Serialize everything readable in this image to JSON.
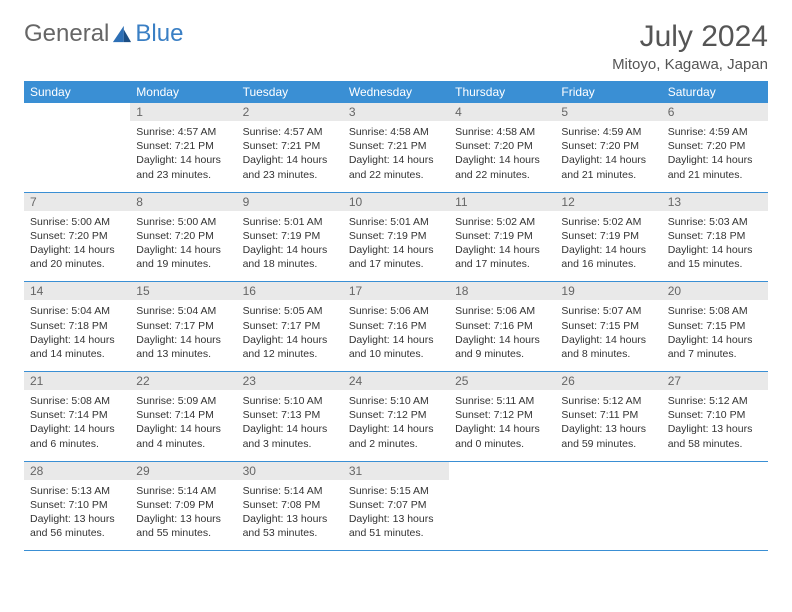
{
  "brand": {
    "part1": "General",
    "part2": "Blue"
  },
  "title": "July 2024",
  "location": "Mitoyo, Kagawa, Japan",
  "dayNames": [
    "Sunday",
    "Monday",
    "Tuesday",
    "Wednesday",
    "Thursday",
    "Friday",
    "Saturday"
  ],
  "colors": {
    "headerBlue": "#3a8fd4",
    "daynumBg": "#e9e9e9",
    "text": "#333333",
    "brandBlue": "#3a7fc4"
  },
  "typography": {
    "titleSize": 30,
    "locationSize": 15,
    "headerSize": 12,
    "cellSize": 10.5
  },
  "startOffset": 1,
  "days": [
    {
      "n": 1,
      "sunrise": "4:57 AM",
      "sunset": "7:21 PM",
      "daylight": "14 hours and 23 minutes."
    },
    {
      "n": 2,
      "sunrise": "4:57 AM",
      "sunset": "7:21 PM",
      "daylight": "14 hours and 23 minutes."
    },
    {
      "n": 3,
      "sunrise": "4:58 AM",
      "sunset": "7:21 PM",
      "daylight": "14 hours and 22 minutes."
    },
    {
      "n": 4,
      "sunrise": "4:58 AM",
      "sunset": "7:20 PM",
      "daylight": "14 hours and 22 minutes."
    },
    {
      "n": 5,
      "sunrise": "4:59 AM",
      "sunset": "7:20 PM",
      "daylight": "14 hours and 21 minutes."
    },
    {
      "n": 6,
      "sunrise": "4:59 AM",
      "sunset": "7:20 PM",
      "daylight": "14 hours and 21 minutes."
    },
    {
      "n": 7,
      "sunrise": "5:00 AM",
      "sunset": "7:20 PM",
      "daylight": "14 hours and 20 minutes."
    },
    {
      "n": 8,
      "sunrise": "5:00 AM",
      "sunset": "7:20 PM",
      "daylight": "14 hours and 19 minutes."
    },
    {
      "n": 9,
      "sunrise": "5:01 AM",
      "sunset": "7:19 PM",
      "daylight": "14 hours and 18 minutes."
    },
    {
      "n": 10,
      "sunrise": "5:01 AM",
      "sunset": "7:19 PM",
      "daylight": "14 hours and 17 minutes."
    },
    {
      "n": 11,
      "sunrise": "5:02 AM",
      "sunset": "7:19 PM",
      "daylight": "14 hours and 17 minutes."
    },
    {
      "n": 12,
      "sunrise": "5:02 AM",
      "sunset": "7:19 PM",
      "daylight": "14 hours and 16 minutes."
    },
    {
      "n": 13,
      "sunrise": "5:03 AM",
      "sunset": "7:18 PM",
      "daylight": "14 hours and 15 minutes."
    },
    {
      "n": 14,
      "sunrise": "5:04 AM",
      "sunset": "7:18 PM",
      "daylight": "14 hours and 14 minutes."
    },
    {
      "n": 15,
      "sunrise": "5:04 AM",
      "sunset": "7:17 PM",
      "daylight": "14 hours and 13 minutes."
    },
    {
      "n": 16,
      "sunrise": "5:05 AM",
      "sunset": "7:17 PM",
      "daylight": "14 hours and 12 minutes."
    },
    {
      "n": 17,
      "sunrise": "5:06 AM",
      "sunset": "7:16 PM",
      "daylight": "14 hours and 10 minutes."
    },
    {
      "n": 18,
      "sunrise": "5:06 AM",
      "sunset": "7:16 PM",
      "daylight": "14 hours and 9 minutes."
    },
    {
      "n": 19,
      "sunrise": "5:07 AM",
      "sunset": "7:15 PM",
      "daylight": "14 hours and 8 minutes."
    },
    {
      "n": 20,
      "sunrise": "5:08 AM",
      "sunset": "7:15 PM",
      "daylight": "14 hours and 7 minutes."
    },
    {
      "n": 21,
      "sunrise": "5:08 AM",
      "sunset": "7:14 PM",
      "daylight": "14 hours and 6 minutes."
    },
    {
      "n": 22,
      "sunrise": "5:09 AM",
      "sunset": "7:14 PM",
      "daylight": "14 hours and 4 minutes."
    },
    {
      "n": 23,
      "sunrise": "5:10 AM",
      "sunset": "7:13 PM",
      "daylight": "14 hours and 3 minutes."
    },
    {
      "n": 24,
      "sunrise": "5:10 AM",
      "sunset": "7:12 PM",
      "daylight": "14 hours and 2 minutes."
    },
    {
      "n": 25,
      "sunrise": "5:11 AM",
      "sunset": "7:12 PM",
      "daylight": "14 hours and 0 minutes."
    },
    {
      "n": 26,
      "sunrise": "5:12 AM",
      "sunset": "7:11 PM",
      "daylight": "13 hours and 59 minutes."
    },
    {
      "n": 27,
      "sunrise": "5:12 AM",
      "sunset": "7:10 PM",
      "daylight": "13 hours and 58 minutes."
    },
    {
      "n": 28,
      "sunrise": "5:13 AM",
      "sunset": "7:10 PM",
      "daylight": "13 hours and 56 minutes."
    },
    {
      "n": 29,
      "sunrise": "5:14 AM",
      "sunset": "7:09 PM",
      "daylight": "13 hours and 55 minutes."
    },
    {
      "n": 30,
      "sunrise": "5:14 AM",
      "sunset": "7:08 PM",
      "daylight": "13 hours and 53 minutes."
    },
    {
      "n": 31,
      "sunrise": "5:15 AM",
      "sunset": "7:07 PM",
      "daylight": "13 hours and 51 minutes."
    }
  ],
  "labels": {
    "sunrise": "Sunrise:",
    "sunset": "Sunset:",
    "daylight": "Daylight:"
  }
}
